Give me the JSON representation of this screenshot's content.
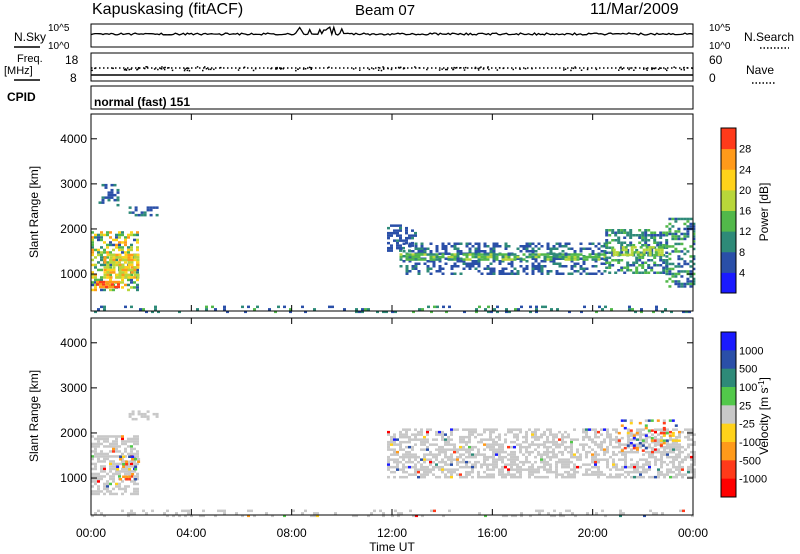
{
  "header": {
    "station": "Kapuskasing (fitACF)",
    "beam": "Beam 07",
    "date": "11/Mar/2009"
  },
  "strip_labels": {
    "nsky": "N.Sky",
    "nsearch": "N.Search",
    "freq_line1": "Freq.",
    "freq_line2": "[MHz]",
    "nave": "Nave",
    "cpid": "CPID",
    "cpid_value": "normal (fast) 151"
  },
  "strip_ticks": {
    "noise_top": "10^5",
    "noise_bottom": "10^0",
    "freq_top": "18",
    "freq_bottom": "8",
    "nave_top": "60",
    "nave_bottom": "0"
  },
  "chart_data": [
    {
      "type": "heatmap",
      "title": "",
      "xlabel": "",
      "ylabel": "Slant Range [km]",
      "xlim": [
        "00:00",
        "24:00"
      ],
      "ylim": [
        180,
        4550
      ],
      "x_ticks": [
        "00:00",
        "04:00",
        "08:00",
        "12:00",
        "16:00",
        "20:00",
        "00:00"
      ],
      "y_ticks": [
        1000,
        2000,
        3000,
        4000
      ],
      "colorbar": {
        "label": "Power [dB]",
        "ticks": [
          "4",
          "8",
          "12",
          "16",
          "20",
          "24",
          "28"
        ],
        "colors": [
          "#1a1aff",
          "#2a4fa8",
          "#2e8a78",
          "#52b84a",
          "#b8d63a",
          "#ffd21a",
          "#ff9a1a",
          "#ff3a1a"
        ]
      },
      "regions": [
        {
          "t": [
            0.0,
            1.9
          ],
          "r": [
            640,
            1950
          ],
          "pmin": 6,
          "pmax": 26,
          "density": 0.55
        },
        {
          "t": [
            0.2,
            1.1
          ],
          "r": [
            700,
            850
          ],
          "pmin": 24,
          "pmax": 32,
          "density": 0.9
        },
        {
          "t": [
            0.5,
            1.9
          ],
          "r": [
            950,
            1450
          ],
          "pmin": 16,
          "pmax": 27,
          "density": 0.75
        },
        {
          "t": [
            0.3,
            1.1
          ],
          "r": [
            2550,
            3000
          ],
          "pmin": 4,
          "pmax": 10,
          "density": 0.3
        },
        {
          "t": [
            1.5,
            2.6
          ],
          "r": [
            2300,
            2500
          ],
          "pmin": 4,
          "pmax": 9,
          "density": 0.55
        },
        {
          "t": [
            11.8,
            12.9
          ],
          "r": [
            1500,
            2100
          ],
          "pmin": 4,
          "pmax": 9,
          "density": 0.45
        },
        {
          "t": [
            12.3,
            20.5
          ],
          "r": [
            1000,
            1700
          ],
          "pmin": 4,
          "pmax": 10,
          "density": 0.45
        },
        {
          "t": [
            12.3,
            20.5
          ],
          "r": [
            1300,
            1460
          ],
          "pmin": 10,
          "pmax": 17,
          "density": 0.7
        },
        {
          "t": [
            20.5,
            22.9
          ],
          "r": [
            1050,
            2000
          ],
          "pmin": 6,
          "pmax": 14,
          "density": 0.5
        },
        {
          "t": [
            20.8,
            22.8
          ],
          "r": [
            1400,
            1620
          ],
          "pmin": 15,
          "pmax": 20,
          "density": 0.75
        },
        {
          "t": [
            22.9,
            24.0
          ],
          "r": [
            700,
            2250
          ],
          "pmin": 4,
          "pmax": 16,
          "density": 0.45
        },
        {
          "t": [
            0.0,
            24.0
          ],
          "r": [
            180,
            300
          ],
          "pmin": 4,
          "pmax": 14,
          "density": 0.2
        }
      ]
    },
    {
      "type": "heatmap",
      "title": "",
      "xlabel": "Time UT",
      "ylabel": "Slant Range [km]",
      "xlim": [
        "00:00",
        "24:00"
      ],
      "ylim": [
        180,
        4550
      ],
      "x_ticks": [
        "00:00",
        "04:00",
        "08:00",
        "12:00",
        "16:00",
        "20:00",
        "00:00"
      ],
      "y_ticks": [
        1000,
        2000,
        3000,
        4000
      ],
      "colorbar": {
        "label": "Velocity [m s^-1]",
        "ticks": [
          "1000",
          "500",
          "100",
          "25",
          "-25",
          "-100",
          "-500",
          "-1000"
        ],
        "colors": [
          "#1a1aff",
          "#2a4fa8",
          "#2e8a78",
          "#52c84a",
          "#c8c8c8",
          "#ffd21a",
          "#ff9a1a",
          "#ff3a1a",
          "#ff0000"
        ]
      },
      "regions": [
        {
          "t": [
            0.0,
            1.9
          ],
          "r": [
            640,
            1950
          ],
          "v": "ground",
          "density": 0.6
        },
        {
          "t": [
            1.0,
            1.9
          ],
          "r": [
            1000,
            1500
          ],
          "v": "mixed",
          "density": 0.35
        },
        {
          "t": [
            1.5,
            2.6
          ],
          "r": [
            2300,
            2500
          ],
          "v": "ground",
          "density": 0.4
        },
        {
          "t": [
            11.8,
            24.0
          ],
          "r": [
            1000,
            2100
          ],
          "v": "ground",
          "density": 0.55
        },
        {
          "t": [
            21.0,
            23.5
          ],
          "r": [
            1600,
            2300
          ],
          "v": "mixed",
          "density": 0.25
        },
        {
          "t": [
            0.0,
            24.0
          ],
          "r": [
            180,
            300
          ],
          "v": "ground",
          "density": 0.18
        }
      ]
    }
  ]
}
